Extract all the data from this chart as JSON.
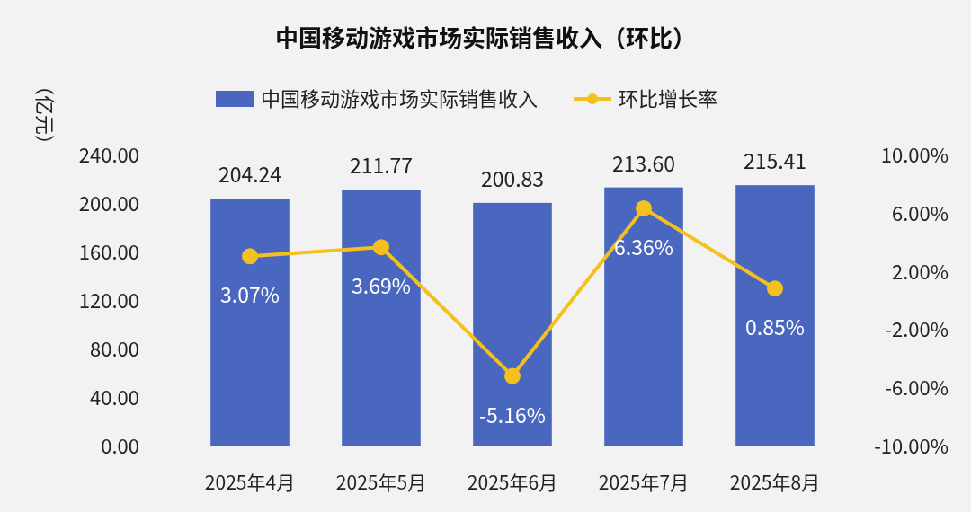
{
  "chart_data": {
    "type": "bar",
    "title": "中国移动游戏市场实际销售收入（环比）",
    "ylabel": "（亿元）",
    "categories": [
      "2025年4月",
      "2025年5月",
      "2025年6月",
      "2025年7月",
      "2025年8月"
    ],
    "series": [
      {
        "name": "中国移动游戏市场实际销售收入",
        "color": "#4a67c0",
        "values": [
          204.24,
          211.77,
          200.83,
          213.6,
          215.41
        ],
        "value_labels": [
          "204.24",
          "211.77",
          "200.83",
          "213.60",
          "215.41"
        ]
      },
      {
        "name": "环比增长率",
        "type": "line",
        "axis": "y2",
        "color": "#f4c01e",
        "marker": "circle",
        "values": [
          3.07,
          3.69,
          -5.16,
          6.36,
          0.85
        ],
        "value_labels": [
          "3.07%",
          "3.69%",
          "-5.16%",
          "6.36%",
          "0.85%"
        ]
      }
    ],
    "ylim": [
      0,
      240
    ],
    "yticks": [
      {
        "value": 0,
        "label": "0.00"
      },
      {
        "value": 40,
        "label": "40.00"
      },
      {
        "value": 80,
        "label": "80.00"
      },
      {
        "value": 120,
        "label": "120.00"
      },
      {
        "value": 160,
        "label": "160.00"
      },
      {
        "value": 200,
        "label": "200.00"
      },
      {
        "value": 240,
        "label": "240.00"
      }
    ],
    "y2lim": [
      -10,
      10
    ],
    "y2ticks": [
      {
        "value": -10,
        "label": "-10.00%"
      },
      {
        "value": -6,
        "label": "-6.00%"
      },
      {
        "value": -2,
        "label": "-2.00%"
      },
      {
        "value": 2,
        "label": "2.00%"
      },
      {
        "value": 6,
        "label": "6.00%"
      },
      {
        "value": 10,
        "label": "10.00%"
      }
    ],
    "legend": "top",
    "grid": false
  }
}
